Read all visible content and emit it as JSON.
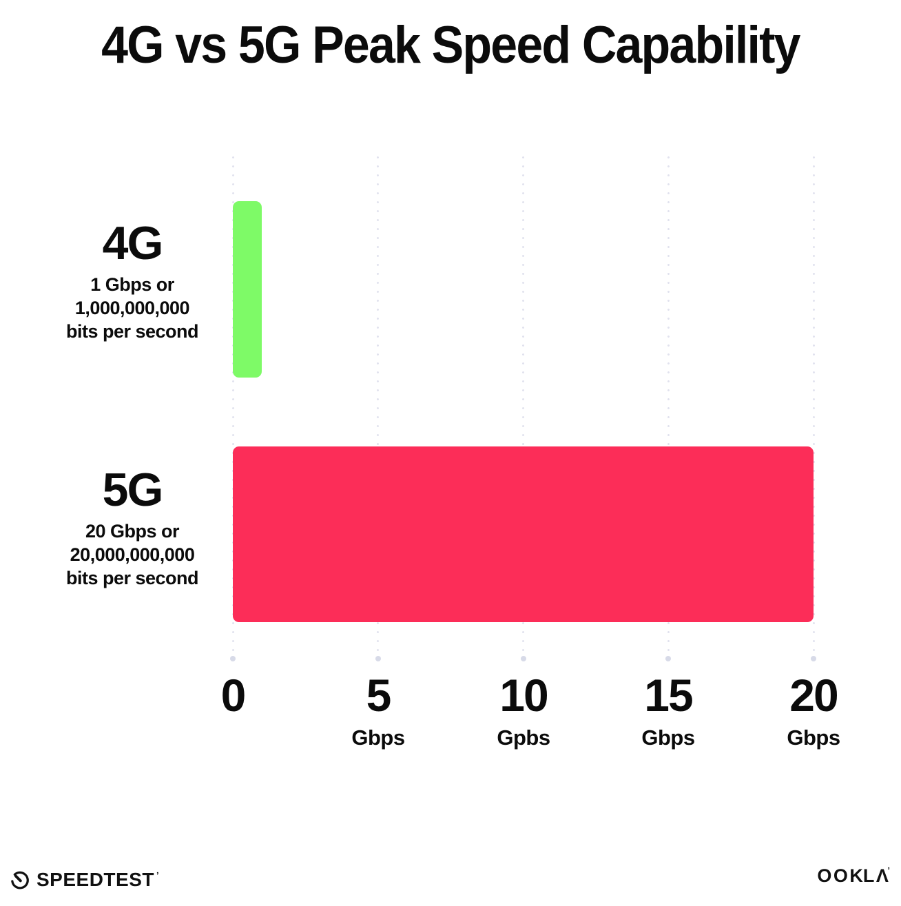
{
  "title": "4G vs 5G Peak Speed Capability",
  "chart_data": {
    "type": "bar",
    "orientation": "horizontal",
    "title": "4G vs 5G Peak Speed Capability",
    "categories": [
      "4G",
      "5G"
    ],
    "values": [
      1,
      20
    ],
    "value_unit": "Gbps",
    "xlim": [
      0,
      20
    ],
    "xticks": [
      0,
      5,
      10,
      15,
      20
    ],
    "grid": "dotted vertical gridlines, light lavender, larger end dot at bottom",
    "gridline_color": "#e1e2ee",
    "bar_colors": [
      "#7efa67",
      "#fc2d58"
    ],
    "rows": [
      {
        "label": "4G",
        "value_gbps": 1,
        "sub_line1": "1 Gbps or",
        "sub_line2": "1,000,000,000",
        "sub_line3": "bits per second",
        "bar_color": "#7efa67"
      },
      {
        "label": "5G",
        "value_gbps": 20,
        "sub_line1": "20 Gbps or",
        "sub_line2": "20,000,000,000",
        "sub_line3": "bits per second",
        "bar_color": "#fc2d58"
      }
    ],
    "x_ticks": [
      {
        "value": "0",
        "unit": ""
      },
      {
        "value": "5",
        "unit": "Gbps"
      },
      {
        "value": "10",
        "unit": "Gpbs"
      },
      {
        "value": "15",
        "unit": "Gbps"
      },
      {
        "value": "20",
        "unit": "Gbps"
      }
    ]
  },
  "footer": {
    "left_brand": "SPEEDTEST",
    "left_brand_mark": "ʼ",
    "right_brand_part1": "OO",
    "right_brand_part2": "K",
    "right_brand_part3": "LΛ",
    "right_brand_mark": "ʼ"
  }
}
